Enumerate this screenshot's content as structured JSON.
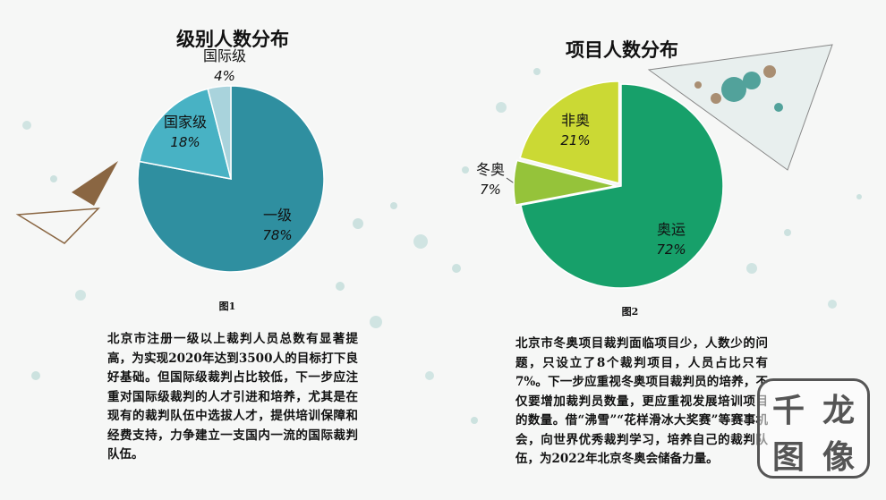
{
  "chart_data": [
    {
      "type": "pie",
      "title": "级别人数分布",
      "categories": [
        "一级",
        "国家级",
        "国际级"
      ],
      "values": [
        78,
        18,
        4
      ],
      "value_labels": [
        "78%",
        "18%",
        "4%"
      ],
      "colors": [
        "#2f8fa0",
        "#48b2c4",
        "#a9d3dc"
      ],
      "caption": "图1"
    },
    {
      "type": "pie",
      "title": "项目人数分布",
      "categories": [
        "奥运",
        "冬奥",
        "非奥"
      ],
      "values": [
        72,
        7,
        21
      ],
      "value_labels": [
        "72%",
        "7%",
        "21%"
      ],
      "colors": [
        "#17a06a",
        "#95c33a",
        "#cbd934"
      ],
      "caption": "图2"
    }
  ],
  "text": {
    "para1": "北京市注册一级以上裁判人员总数有显著提高，为实现2020年达到3500人的目标打下良好基础。但国际级裁判占比较低，下一步应注重对国际级裁判的人才引进和培养，尤其是在现有的裁判队伍中选拔人才，提供培训保障和经费支持，力争建立一支国内一流的国际裁判队伍。",
    "para2": "北京市冬奥项目裁判面临项目少，人数少的问题，只设立了8个裁判项目，人员占比只有7%。下一步应重视冬奥项目裁判员的培养，不仅要增加裁判员数量，更应重视发展培训项目的数量。借“沸雪”“花样滑冰大奖赛”等赛事机会，向世界优秀裁判学习，培养自己的裁判队伍，为2022年北京冬奥会储备力量。"
  },
  "watermark": {
    "chars": [
      "千",
      "龙",
      "图",
      "像"
    ]
  }
}
